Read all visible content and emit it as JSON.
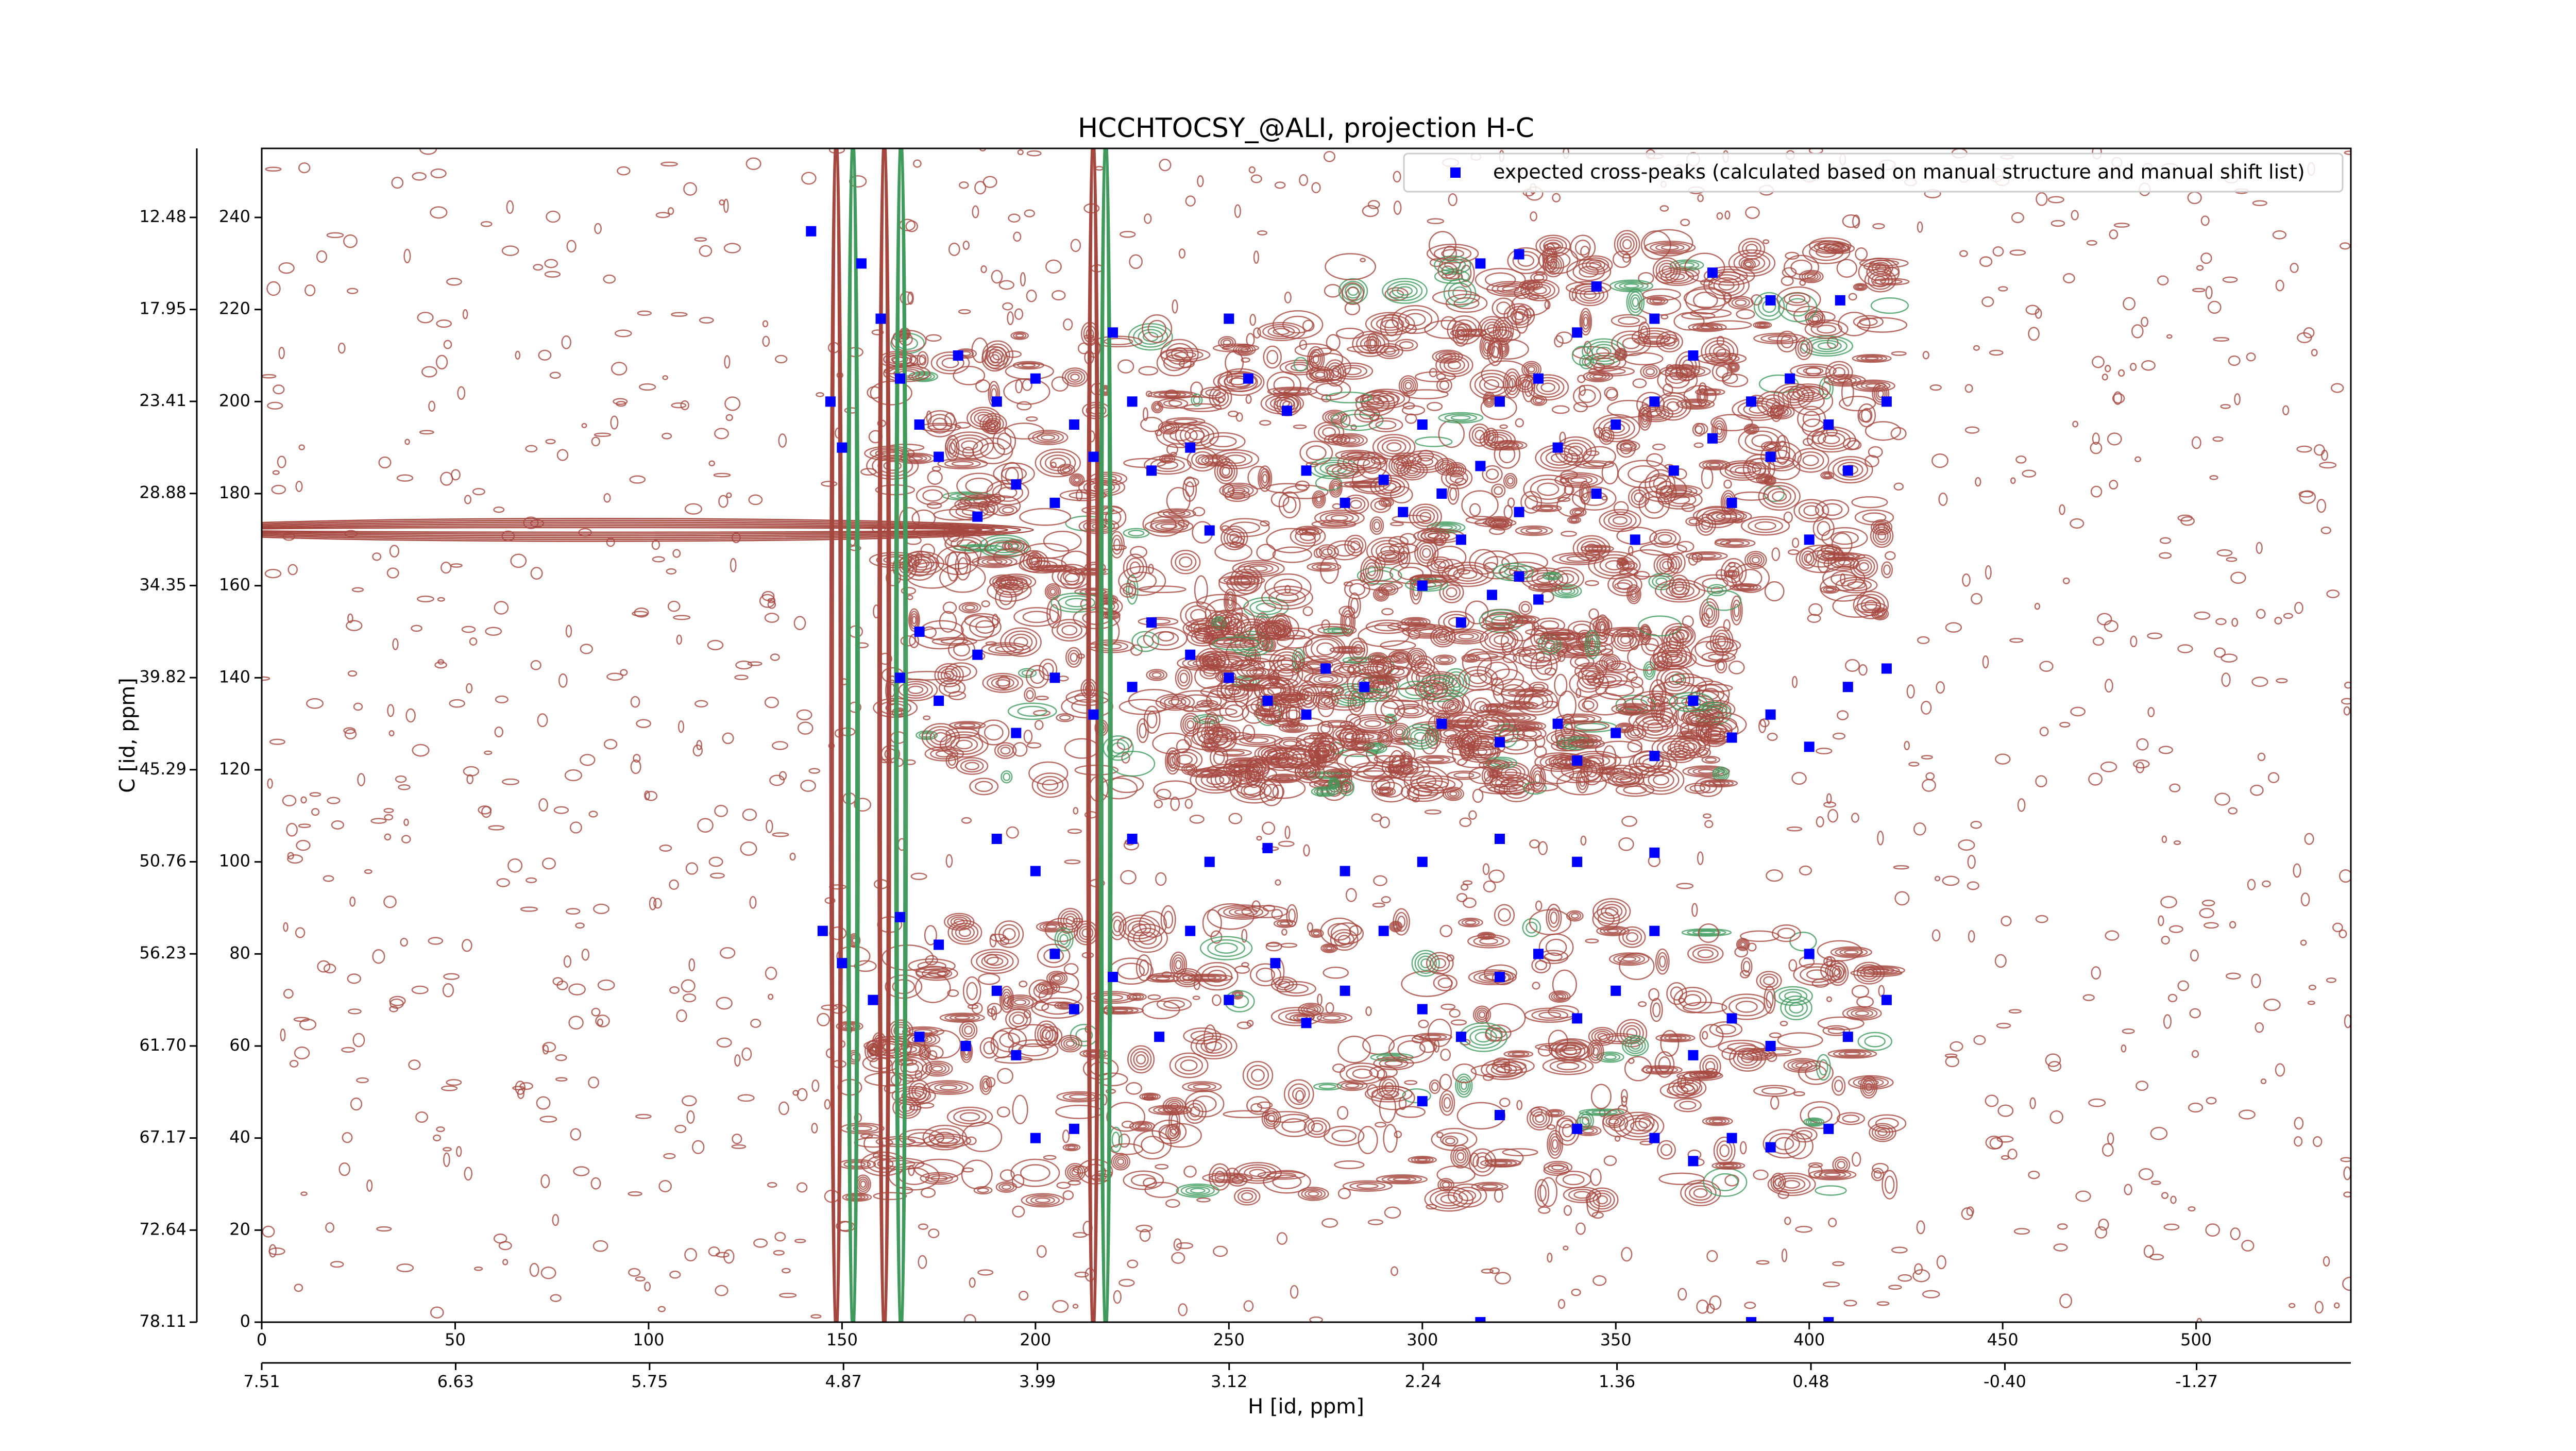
{
  "chart_data": {
    "type": "scatter",
    "title": "HCCHTOCSY_@ALI, projection H-C",
    "xlabel": "H [id, ppm]",
    "ylabel": "C [id, ppm]",
    "legend": "upper right",
    "xlim": [
      0,
      540
    ],
    "xticks": [
      0,
      50,
      100,
      150,
      200,
      250,
      300,
      350,
      400,
      450,
      500
    ],
    "x2lim": [
      7.51,
      -1.97
    ],
    "x2ticks": [
      7.51,
      6.63,
      5.75,
      4.87,
      3.99,
      3.12,
      2.24,
      1.36,
      0.48,
      {
        "value": -0.4,
        "label": "-0.40"
      },
      -1.27
    ],
    "ylim": [
      0,
      255
    ],
    "yticks": [
      0,
      20,
      40,
      60,
      80,
      100,
      120,
      140,
      160,
      180,
      200,
      220,
      240
    ],
    "y2lim": [
      78.11,
      8.38
    ],
    "y2ticks": [
      78.11,
      72.64,
      67.17,
      {
        "value": 61.7,
        "label": "61.70"
      },
      56.23,
      50.76,
      45.29,
      39.82,
      34.35,
      28.88,
      23.41,
      17.95,
      12.48
    ],
    "series": [
      {
        "name": "expected cross-peaks (calculated based on manual structure and manual shift list)",
        "color": "#0000ff",
        "x": [
          142,
          147,
          150,
          155,
          160,
          165,
          170,
          175,
          180,
          185,
          190,
          195,
          200,
          205,
          210,
          215,
          220,
          225,
          230,
          240,
          245,
          250,
          255,
          265,
          270,
          280,
          290,
          295,
          300,
          305,
          310,
          315,
          320,
          325,
          330,
          335,
          340,
          345,
          350,
          355,
          360,
          365,
          370,
          375,
          380,
          385,
          390,
          395,
          400,
          405,
          410,
          420,
          315,
          325,
          345,
          360,
          375,
          390,
          408,
          318,
          325,
          300,
          310,
          330,
          230,
          240,
          170,
          165,
          175,
          185,
          195,
          205,
          215,
          225,
          250,
          260,
          270,
          275,
          285,
          305,
          320,
          335,
          340,
          350,
          360,
          370,
          380,
          390,
          400,
          410,
          420,
          190,
          200,
          225,
          245,
          260,
          280,
          300,
          320,
          340,
          360,
          145,
          150,
          158,
          165,
          170,
          175,
          182,
          190,
          195,
          205,
          210,
          220,
          232,
          240,
          250,
          262,
          270,
          280,
          290,
          300,
          310,
          320,
          330,
          340,
          350,
          360,
          370,
          380,
          390,
          400,
          410,
          420,
          300,
          320,
          340,
          360,
          370,
          380,
          390,
          405,
          200,
          210,
          385,
          405,
          315
        ],
        "values": [
          237,
          200,
          190,
          230,
          218,
          205,
          195,
          188,
          210,
          175,
          200,
          182,
          205,
          178,
          195,
          188,
          215,
          200,
          185,
          190,
          172,
          218,
          205,
          198,
          185,
          178,
          183,
          176,
          195,
          180,
          170,
          186,
          200,
          176,
          205,
          190,
          215,
          180,
          195,
          170,
          200,
          185,
          210,
          192,
          178,
          200,
          188,
          205,
          170,
          195,
          185,
          200,
          230,
          232,
          225,
          218,
          228,
          222,
          222,
          158,
          162,
          160,
          152,
          157,
          152,
          145,
          150,
          140,
          135,
          145,
          128,
          140,
          132,
          138,
          140,
          135,
          132,
          142,
          138,
          130,
          126,
          130,
          122,
          128,
          123,
          135,
          127,
          132,
          125,
          138,
          142,
          105,
          98,
          105,
          100,
          103,
          98,
          100,
          105,
          100,
          102,
          85,
          78,
          70,
          88,
          62,
          82,
          60,
          72,
          58,
          80,
          68,
          75,
          62,
          85,
          70,
          78,
          65,
          72,
          85,
          68,
          62,
          75,
          80,
          66,
          72,
          85,
          58,
          66,
          60,
          80,
          62,
          70,
          48,
          45,
          42,
          40,
          35,
          40,
          38,
          42,
          40,
          42,
          0,
          0,
          0
        ]
      }
    ]
  }
}
